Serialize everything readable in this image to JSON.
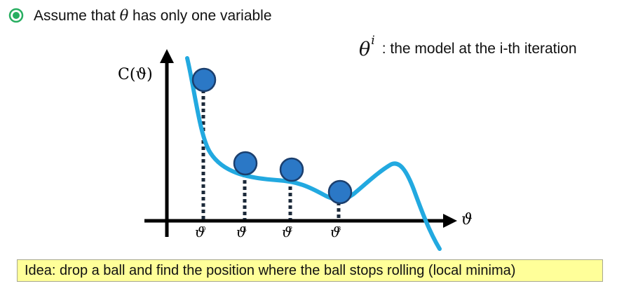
{
  "bullet": {
    "text_before": "Assume that ",
    "symbol": "θ",
    "text_after": " has only one variable",
    "icon": "radio-bullet-icon",
    "icon_color": "#27ae60"
  },
  "legend_note": {
    "symbol": "θ",
    "superscript": "i",
    "text": ": the model at the i-th iteration"
  },
  "graph": {
    "y_label": "C(ϑ)",
    "x_symbol": "ϑ",
    "ticks": [
      {
        "symbol": "ϑ",
        "sub": "0"
      },
      {
        "symbol": "ϑ",
        "sub": "1"
      },
      {
        "symbol": "ϑ",
        "sub": "2"
      },
      {
        "symbol": "ϑ",
        "sub": "3"
      }
    ],
    "curve_color": "#22a9e0",
    "ball_color": "#2b78c6",
    "ball_border_color": "#1b3f6e",
    "dash_color": "#1c2a3a"
  },
  "idea": {
    "text": "Idea: drop a ball and find the position where the ball stops rolling (local minima)",
    "background": "#ffff99"
  }
}
